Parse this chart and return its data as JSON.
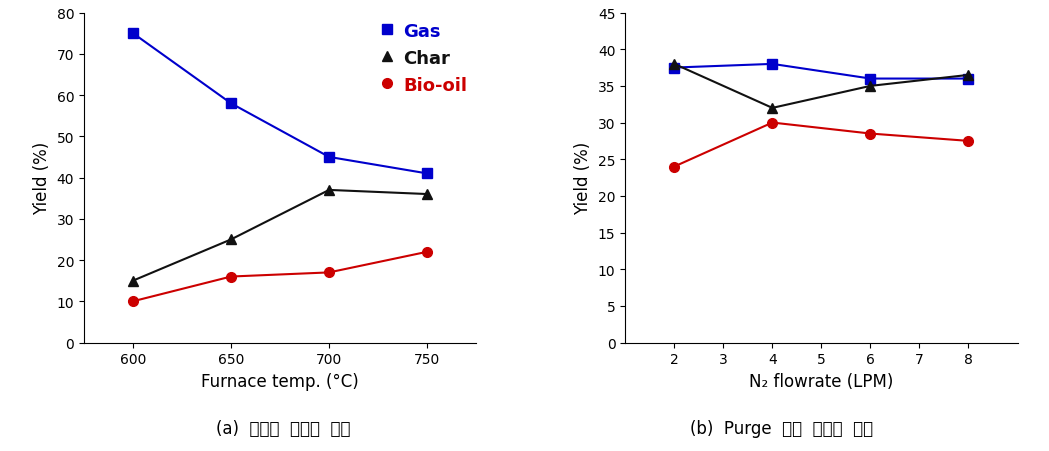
{
  "plot_a": {
    "x": [
      600,
      650,
      700,
      750
    ],
    "gas": [
      75,
      58,
      45,
      41
    ],
    "char": [
      15,
      25,
      37,
      36
    ],
    "biooil": [
      10,
      16,
      17,
      22
    ],
    "xlabel": "Furnace temp. (°C)",
    "ylabel": "Yield (%)",
    "xlim": [
      575,
      775
    ],
    "ylim": [
      0,
      80
    ],
    "yticks": [
      0,
      10,
      20,
      30,
      40,
      50,
      60,
      70,
      80
    ],
    "xticks": [
      600,
      650,
      700,
      750
    ],
    "caption": "(a)  열분해  온도의  영향"
  },
  "plot_b": {
    "x": [
      2,
      4,
      6,
      8
    ],
    "gas": [
      37.5,
      38.0,
      36.0,
      36.0
    ],
    "char": [
      38.0,
      32.0,
      35.0,
      36.5
    ],
    "biooil": [
      24.0,
      30.0,
      28.5,
      27.5
    ],
    "xlabel": "N₂ flowrate (LPM)",
    "ylabel": "Yield (%)",
    "xlim": [
      1,
      9
    ],
    "ylim": [
      0,
      45
    ],
    "yticks": [
      0,
      5,
      10,
      15,
      20,
      25,
      30,
      35,
      40,
      45
    ],
    "xticks": [
      2,
      3,
      4,
      5,
      6,
      7,
      8
    ],
    "caption": "(b)  Purge  가스  유량의  영향"
  },
  "gas_color": "#0000cc",
  "char_color": "#111111",
  "biooil_color": "#cc0000",
  "gas_label": "Gas",
  "char_label": "Char",
  "biooil_label": "Bio-oil",
  "marker_gas": "s",
  "marker_char": "^",
  "marker_biooil": "o",
  "linewidth": 1.5,
  "markersize": 7,
  "caption_fontsize": 12,
  "legend_fontsize": 13,
  "axis_label_fontsize": 12,
  "tick_fontsize": 10
}
